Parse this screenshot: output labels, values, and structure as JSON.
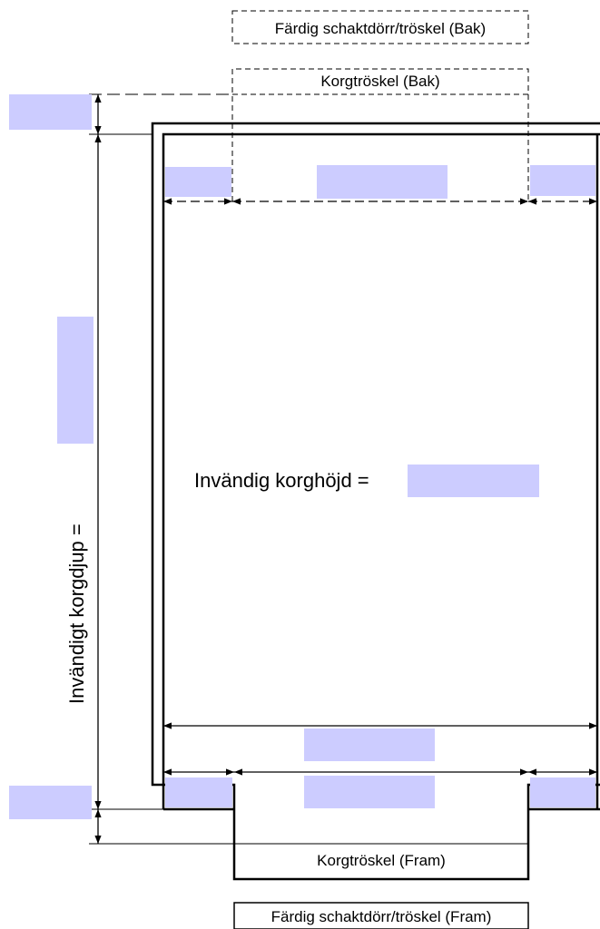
{
  "labels": {
    "shaft_door_back": "Färdig schaktdörr/tröskel (Bak)",
    "car_sill_back": "Korgtröskel (Bak)",
    "inner_height": "Invändig korghöjd =",
    "inner_depth": "Invändigt korgdjup =",
    "car_sill_front": "Korgtröskel (Fram)",
    "shaft_door_front": "Färdig schaktdörr/tröskel (Fram)"
  },
  "input_fields": {
    "color": "#ccccff",
    "top_offset": "",
    "bottom_offset": "",
    "inner_depth": "",
    "inner_height": "",
    "back_left_width": "",
    "back_opening_width": "",
    "back_right_width": "",
    "front_total_width": "",
    "front_left_width": "",
    "front_opening_width": "",
    "front_right_width": ""
  }
}
